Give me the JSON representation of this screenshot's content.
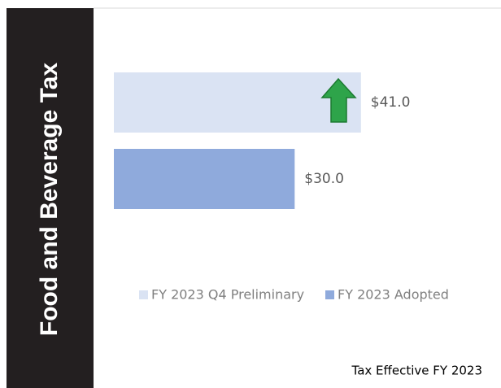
{
  "chart_data": {
    "type": "bar",
    "orientation": "horizontal",
    "title": "Food and Beverage Tax",
    "series": [
      {
        "name": "FY 2023 Q4 Preliminary",
        "color": "#dae3f3",
        "values": [
          41.0
        ],
        "value_labels": [
          "$41.0"
        ]
      },
      {
        "name": "FY 2023 Adopted",
        "color": "#8faadc",
        "values": [
          30.0
        ],
        "value_labels": [
          "$30.0"
        ]
      }
    ],
    "legend": "bottom",
    "note": "Tax Effective FY 2023"
  }
}
